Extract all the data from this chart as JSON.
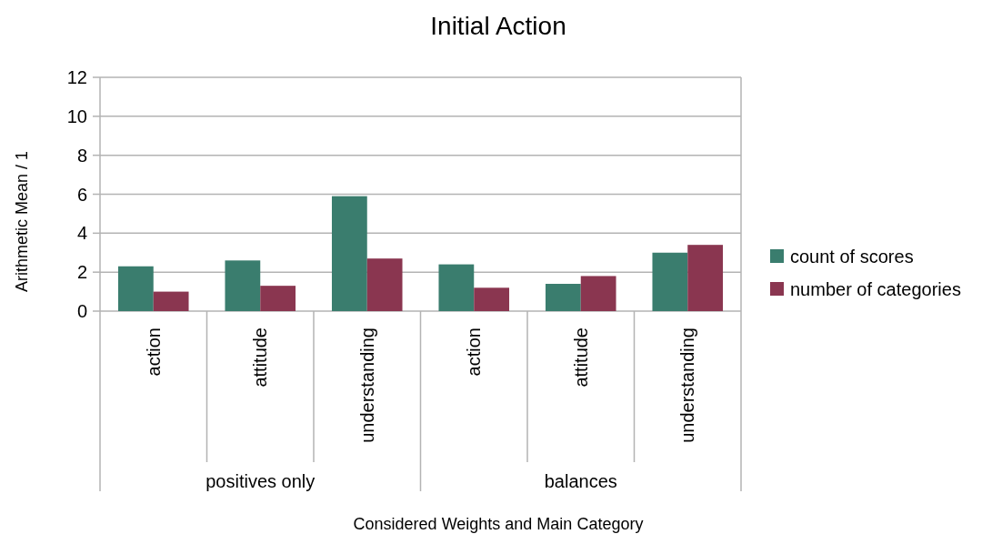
{
  "chart_data": {
    "type": "bar",
    "title": "Initial Action",
    "xlabel": "Considered Weights and Main Category",
    "ylabel": "Arithmetic Mean / 1",
    "categories": [
      "action",
      "attitude",
      "understanding",
      "action",
      "attitude",
      "understanding"
    ],
    "annotations": [
      "positives only",
      "balances"
    ],
    "series": [
      {
        "name": "count of scores",
        "color": "#3a7d6e",
        "values": [
          2.3,
          2.6,
          5.9,
          2.4,
          1.4,
          3.0
        ]
      },
      {
        "name": "number of categories",
        "color": "#8a3650",
        "values": [
          1.0,
          1.3,
          2.7,
          1.2,
          1.8,
          3.4
        ]
      }
    ],
    "ylim": [
      0,
      12
    ],
    "yticks": [
      0,
      2,
      4,
      6,
      8,
      10,
      12
    ],
    "grid": "y",
    "legend": "right"
  }
}
